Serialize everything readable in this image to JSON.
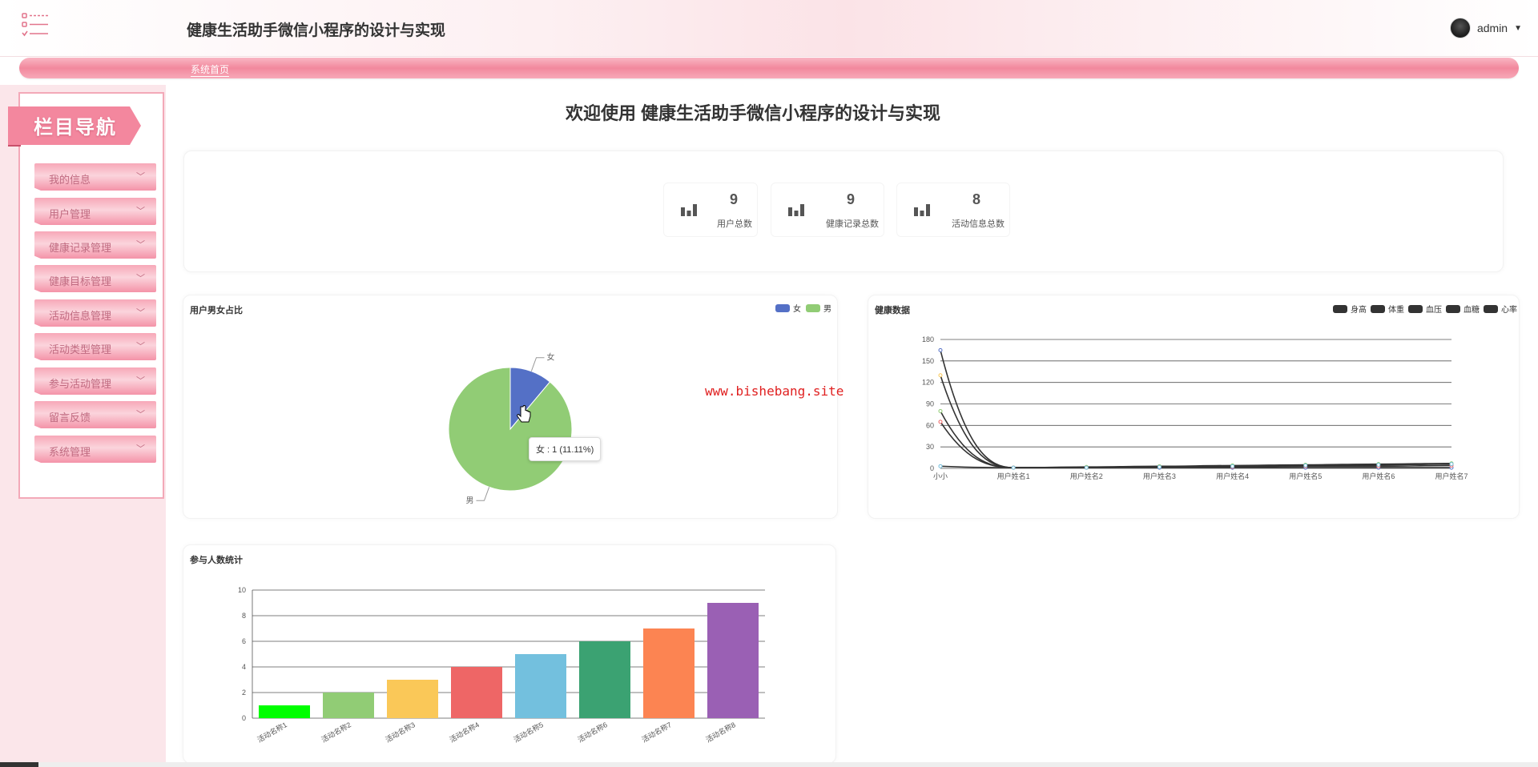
{
  "header": {
    "title": "健康生活助手微信小程序的设计与实现",
    "user": "admin"
  },
  "breadcrumb": "系统首页",
  "sidebar": {
    "banner": "栏目导航",
    "items": [
      {
        "label": "我的信息"
      },
      {
        "label": "用户管理"
      },
      {
        "label": "健康记录管理"
      },
      {
        "label": "健康目标管理"
      },
      {
        "label": "活动信息管理"
      },
      {
        "label": "活动类型管理"
      },
      {
        "label": "参与活动管理"
      },
      {
        "label": "留言反馈"
      },
      {
        "label": "系统管理"
      }
    ]
  },
  "welcome": "欢迎使用 健康生活助手微信小程序的设计与实现",
  "stats": [
    {
      "value": "9",
      "label": "用户总数"
    },
    {
      "value": "9",
      "label": "健康记录总数"
    },
    {
      "value": "8",
      "label": "活动信息总数"
    }
  ],
  "watermark": "www.bishebang.site",
  "pie_tooltip": "女 : 1 (11.11%)",
  "colors": {
    "accent": "#f2889d",
    "pie_female": "#5470c6",
    "pie_male": "#91cc75"
  },
  "chart_data": [
    {
      "type": "pie",
      "title": "用户男女占比",
      "legend": [
        "女",
        "男"
      ],
      "legend_position": "top-right",
      "slices": [
        {
          "name": "女",
          "value": 1,
          "color": "#5470c6"
        },
        {
          "name": "男",
          "value": 8,
          "color": "#91cc75"
        }
      ]
    },
    {
      "type": "line",
      "title": "健康数据",
      "legend_position": "top-right",
      "categories": [
        "小小",
        "用户姓名1",
        "用户姓名2",
        "用户姓名3",
        "用户姓名4",
        "用户姓名5",
        "用户姓名6",
        "用户姓名7"
      ],
      "ylim": [
        0,
        180
      ],
      "yticks": [
        0,
        30,
        60,
        90,
        120,
        150,
        180
      ],
      "grid": true,
      "series": [
        {
          "name": "身高",
          "values": [
            165,
            1,
            1,
            1,
            1,
            1,
            1,
            1
          ]
        },
        {
          "name": "体重",
          "values": [
            130,
            1,
            1,
            2,
            3,
            4,
            5,
            6
          ]
        },
        {
          "name": "血压",
          "values": [
            80,
            1,
            2,
            3,
            4,
            5,
            6,
            7
          ]
        },
        {
          "name": "血糖",
          "values": [
            65,
            1,
            1,
            2,
            2,
            3,
            3,
            4
          ]
        },
        {
          "name": "心率",
          "values": [
            3,
            1,
            1,
            2,
            3,
            4,
            5,
            6
          ]
        }
      ]
    },
    {
      "type": "bar",
      "title": "参与人数统计",
      "categories": [
        "活动名称1",
        "活动名称2",
        "活动名称3",
        "活动名称4",
        "活动名称5",
        "活动名称6",
        "活动名称7",
        "活动名称8"
      ],
      "values": [
        1,
        2,
        3,
        4,
        5,
        6,
        7,
        9
      ],
      "colors": [
        "#00ff00",
        "#91cc75",
        "#fac858",
        "#ee6666",
        "#73c0de",
        "#3ba272",
        "#fc8452",
        "#9a60b4"
      ],
      "ylim": [
        0,
        10
      ],
      "yticks": [
        0,
        2,
        4,
        6,
        8,
        10
      ],
      "grid": true
    }
  ]
}
